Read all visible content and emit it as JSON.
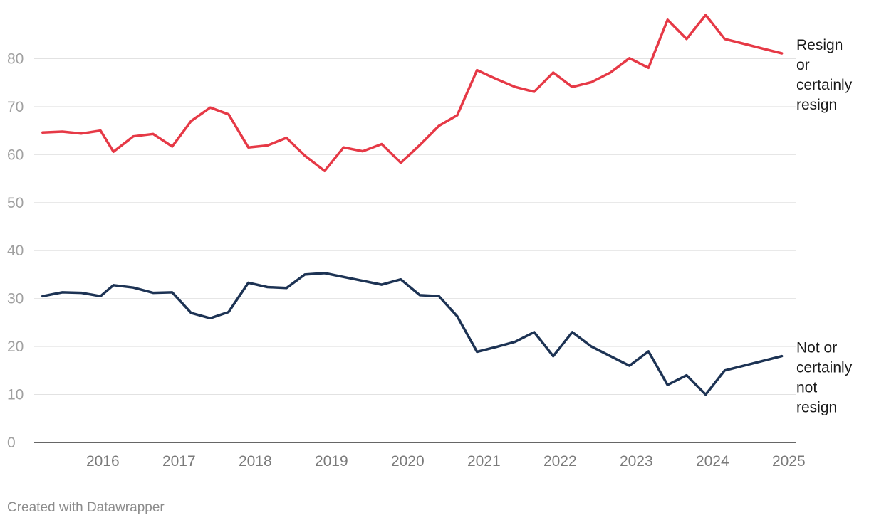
{
  "chart_data": {
    "type": "line",
    "ylim": [
      0,
      90
    ],
    "yticks": [
      0,
      10,
      20,
      30,
      40,
      50,
      60,
      70,
      80
    ],
    "xlim": [
      2015.6,
      2025.6
    ],
    "xticks": [
      "2016",
      "2017",
      "2018",
      "2019",
      "2020",
      "2021",
      "2022",
      "2023",
      "2024",
      "2025"
    ],
    "grid": true,
    "series": [
      {
        "name": "Resign or certainly resign",
        "color": "#e63946",
        "x": [
          2015.71,
          2015.97,
          2016.22,
          2016.47,
          2016.64,
          2016.9,
          2017.16,
          2017.41,
          2017.66,
          2017.91,
          2018.15,
          2018.41,
          2018.66,
          2018.91,
          2019.15,
          2019.41,
          2019.66,
          2019.91,
          2020.16,
          2020.41,
          2020.66,
          2020.91,
          2021.15,
          2021.41,
          2021.66,
          2021.91,
          2022.16,
          2022.41,
          2022.66,
          2022.91,
          2023.16,
          2023.41,
          2023.66,
          2023.91,
          2024.16,
          2024.41,
          2024.66,
          2024.91,
          2025.16,
          2025.41
        ],
        "values": [
          64.6,
          64.8,
          64.4,
          65.0,
          60.6,
          63.8,
          64.3,
          61.7,
          67.0,
          69.8,
          68.4,
          61.5,
          61.9,
          63.5,
          59.8,
          56.6,
          61.5,
          60.7,
          62.2,
          58.3,
          62.0,
          66.0,
          68.2,
          77.6,
          75.8,
          74.1,
          73.1,
          77.1,
          74.1,
          75.1,
          77.1,
          80.1,
          78.1,
          88.1,
          84.1,
          89.1,
          84.1,
          83.1,
          82.1,
          81.1
        ]
      },
      {
        "name": "Not or certainly not resign",
        "color": "#1d3354",
        "x": [
          2015.71,
          2015.97,
          2016.22,
          2016.47,
          2016.64,
          2016.9,
          2017.16,
          2017.41,
          2017.66,
          2017.91,
          2018.15,
          2018.41,
          2018.66,
          2018.91,
          2019.15,
          2019.41,
          2019.66,
          2019.91,
          2020.16,
          2020.41,
          2020.66,
          2020.91,
          2021.15,
          2021.41,
          2021.66,
          2021.91,
          2022.16,
          2022.41,
          2022.66,
          2022.91,
          2023.16,
          2023.41,
          2023.66,
          2023.91,
          2024.16,
          2024.41,
          2024.66,
          2024.91,
          2025.16,
          2025.41
        ],
        "values": [
          30.5,
          31.3,
          31.2,
          30.5,
          32.8,
          32.3,
          31.2,
          31.3,
          27.0,
          25.9,
          27.2,
          33.3,
          32.4,
          32.2,
          35.0,
          35.3,
          34.5,
          33.7,
          32.9,
          34.0,
          30.7,
          30.5,
          26.3,
          18.9,
          19.9,
          21.0,
          23.0,
          18.0,
          23.0,
          20.0,
          18.0,
          16.0,
          19.0,
          12.0,
          14.0,
          10.0,
          15.0,
          16.0,
          17.0,
          18.0
        ]
      }
    ],
    "series_labels": [
      [
        "Resign",
        "or",
        "certainly",
        "resign"
      ],
      [
        "Not or",
        "certainly",
        "not",
        "resign"
      ]
    ],
    "legend": "none (direct labels at right end of lines)"
  },
  "footer": {
    "credit": "Created with Datawrapper"
  }
}
